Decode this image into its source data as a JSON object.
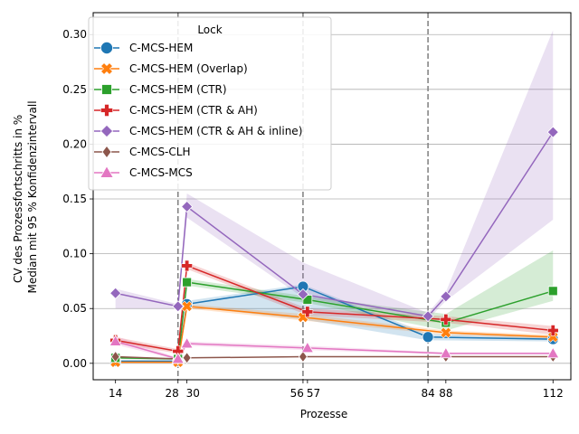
{
  "chart_data": {
    "type": "line",
    "xlabel": "Prozesse",
    "ylabel": [
      "CV des Prozessfortschritts in %",
      "Median mit 95 % Konfidenzintervall"
    ],
    "x_ticks": [
      14,
      28,
      30,
      56,
      57,
      84,
      88,
      112
    ],
    "x_tick_labels": [
      "14",
      "28",
      "30",
      "56",
      "57",
      "84",
      "88",
      "112"
    ],
    "xlim": [
      9,
      116
    ],
    "y_ticks": [
      0.0,
      0.05,
      0.1,
      0.15,
      0.2,
      0.25,
      0.3
    ],
    "y_tick_labels": [
      "0.00",
      "0.05",
      "0.10",
      "0.15",
      "0.20",
      "0.25",
      "0.30"
    ],
    "ylim": [
      -0.015,
      0.32
    ],
    "vlines": [
      28,
      56,
      84
    ],
    "grid": "horizontal",
    "legend": {
      "title": "Lock",
      "placement": "top-left"
    },
    "series": [
      {
        "name": "C-MCS-HEM",
        "color": "#1f77b4",
        "marker": "circle",
        "x": [
          14,
          28,
          30,
          56,
          84,
          112
        ],
        "y": [
          0.002,
          0.002,
          0.054,
          0.07,
          0.024,
          0.022
        ],
        "lo": [
          0.002,
          0.002,
          0.052,
          0.04,
          0.021,
          0.02
        ],
        "hi": [
          0.002,
          0.002,
          0.057,
          0.072,
          0.027,
          0.024
        ]
      },
      {
        "name": "C-MCS-HEM (Overlap)",
        "color": "#ff7f0e",
        "marker": "x",
        "x": [
          14,
          28,
          30,
          56,
          88,
          112
        ],
        "y": [
          0.001,
          0.001,
          0.052,
          0.042,
          0.028,
          0.024
        ],
        "lo": [
          0.001,
          0.001,
          0.05,
          0.039,
          0.026,
          0.022
        ],
        "hi": [
          0.001,
          0.001,
          0.054,
          0.045,
          0.03,
          0.026
        ]
      },
      {
        "name": "C-MCS-HEM (CTR)",
        "color": "#2ca02c",
        "marker": "square",
        "x": [
          14,
          28,
          30,
          57,
          88,
          112
        ],
        "y": [
          0.005,
          0.004,
          0.074,
          0.058,
          0.037,
          0.066
        ],
        "lo": [
          0.004,
          0.003,
          0.071,
          0.055,
          0.03,
          0.057
        ],
        "hi": [
          0.006,
          0.005,
          0.077,
          0.061,
          0.045,
          0.103
        ]
      },
      {
        "name": "C-MCS-HEM (CTR & AH)",
        "color": "#d62728",
        "marker": "plus",
        "x": [
          14,
          28,
          30,
          57,
          88,
          112
        ],
        "y": [
          0.021,
          0.011,
          0.089,
          0.047,
          0.04,
          0.03
        ],
        "lo": [
          0.018,
          0.009,
          0.086,
          0.044,
          0.037,
          0.026
        ],
        "hi": [
          0.024,
          0.013,
          0.092,
          0.05,
          0.043,
          0.034
        ]
      },
      {
        "name": "C-MCS-HEM (CTR & AH & inline)",
        "color": "#9467bd",
        "marker": "diamond",
        "x": [
          14,
          28,
          30,
          56,
          84,
          88,
          112
        ],
        "y": [
          0.064,
          0.052,
          0.143,
          0.063,
          0.043,
          0.061,
          0.211
        ],
        "lo": [
          0.05,
          0.05,
          0.133,
          0.06,
          0.04,
          0.057,
          0.131
        ],
        "hi": [
          0.068,
          0.054,
          0.155,
          0.092,
          0.046,
          0.065,
          0.304
        ]
      },
      {
        "name": "C-MCS-CLH",
        "color": "#8c564b",
        "marker": "thin_diamond",
        "x": [
          14,
          28,
          30,
          56,
          88,
          112
        ],
        "y": [
          0.006,
          0.004,
          0.005,
          0.006,
          0.006,
          0.006
        ],
        "lo": [
          0.006,
          0.004,
          0.005,
          0.006,
          0.006,
          0.006
        ],
        "hi": [
          0.006,
          0.004,
          0.005,
          0.006,
          0.006,
          0.006
        ]
      },
      {
        "name": "C-MCS-MCS",
        "color": "#e377c2",
        "marker": "triangle",
        "x": [
          14,
          28,
          30,
          57,
          88,
          112
        ],
        "y": [
          0.02,
          0.004,
          0.018,
          0.014,
          0.009,
          0.009
        ],
        "lo": [
          0.017,
          0.003,
          0.016,
          0.012,
          0.008,
          0.008
        ],
        "hi": [
          0.025,
          0.005,
          0.02,
          0.016,
          0.01,
          0.01
        ]
      }
    ]
  }
}
